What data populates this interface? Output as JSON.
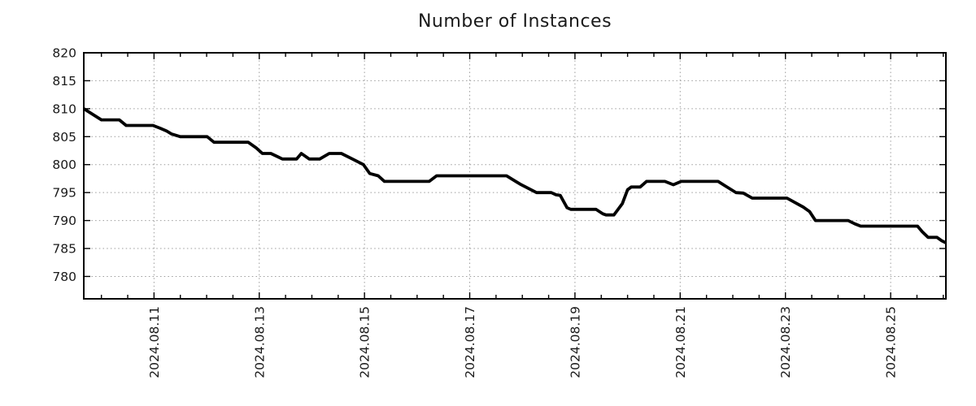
{
  "chart_data": {
    "type": "line",
    "title": "Number of Instances",
    "grid": {
      "style": "dotted",
      "color": "#9c9c9c",
      "on": true
    },
    "colors": {
      "line": "#000000",
      "axis": "#000000",
      "text": "#1a1a1a",
      "background": "#ffffff"
    },
    "legend": "none",
    "x_axis": {
      "tick_labels": [
        "2024.08.11",
        "2024.08.13",
        "2024.08.15",
        "2024.08.17",
        "2024.08.19",
        "2024.08.21",
        "2024.08.23",
        "2024.08.25"
      ],
      "tick_values_days_from_2024_08_11": [
        0,
        2,
        4,
        6,
        8,
        10,
        12,
        14
      ],
      "minor_tick_step_days": 0.5,
      "xlim_days_from_2024_08_11": [
        -1.335,
        15.05
      ]
    },
    "y_axis": {
      "tick_labels": [
        "780",
        "785",
        "790",
        "795",
        "800",
        "805",
        "810",
        "815",
        "820"
      ],
      "tick_values": [
        780,
        785,
        790,
        795,
        800,
        805,
        810,
        815,
        820
      ],
      "ylim": [
        776,
        820
      ]
    },
    "series": [
      {
        "name": "instances",
        "color": "#000000",
        "points_t_days_value": [
          [
            -1.335,
            810
          ],
          [
            -1.0,
            808
          ],
          [
            -0.66,
            808
          ],
          [
            -0.53,
            807
          ],
          [
            -0.02,
            807
          ],
          [
            0.12,
            806.5
          ],
          [
            0.24,
            806
          ],
          [
            0.33,
            805.5
          ],
          [
            0.5,
            805
          ],
          [
            1.01,
            805
          ],
          [
            1.14,
            804
          ],
          [
            1.79,
            804
          ],
          [
            1.94,
            803
          ],
          [
            2.06,
            802
          ],
          [
            2.22,
            802
          ],
          [
            2.33,
            801.5
          ],
          [
            2.44,
            801
          ],
          [
            2.71,
            801
          ],
          [
            2.8,
            802
          ],
          [
            2.95,
            801
          ],
          [
            3.15,
            801
          ],
          [
            3.33,
            802
          ],
          [
            3.56,
            802
          ],
          [
            3.77,
            801
          ],
          [
            3.98,
            800
          ],
          [
            4.1,
            798.4
          ],
          [
            4.26,
            798
          ],
          [
            4.38,
            797
          ],
          [
            5.23,
            797
          ],
          [
            5.37,
            798
          ],
          [
            6.7,
            798
          ],
          [
            6.96,
            796.5
          ],
          [
            7.27,
            795
          ],
          [
            7.55,
            795
          ],
          [
            7.64,
            794.6
          ],
          [
            7.72,
            794.5
          ],
          [
            7.85,
            792.3
          ],
          [
            7.92,
            792
          ],
          [
            8.4,
            792
          ],
          [
            8.53,
            791.2
          ],
          [
            8.59,
            791
          ],
          [
            8.74,
            791
          ],
          [
            8.9,
            793
          ],
          [
            9.0,
            795.5
          ],
          [
            9.07,
            796
          ],
          [
            9.24,
            796
          ],
          [
            9.36,
            797
          ],
          [
            9.71,
            797
          ],
          [
            9.87,
            796.4
          ],
          [
            10.02,
            797
          ],
          [
            10.72,
            797
          ],
          [
            10.89,
            796
          ],
          [
            11.06,
            795
          ],
          [
            11.2,
            794.9
          ],
          [
            11.37,
            794
          ],
          [
            12.03,
            794
          ],
          [
            12.34,
            792.4
          ],
          [
            12.46,
            791.6
          ],
          [
            12.57,
            790
          ],
          [
            13.19,
            790
          ],
          [
            13.32,
            789.4
          ],
          [
            13.43,
            789
          ],
          [
            14.51,
            789
          ],
          [
            14.6,
            788
          ],
          [
            14.71,
            787
          ],
          [
            14.88,
            787
          ],
          [
            14.97,
            786.4
          ],
          [
            15.05,
            786
          ]
        ]
      }
    ]
  }
}
